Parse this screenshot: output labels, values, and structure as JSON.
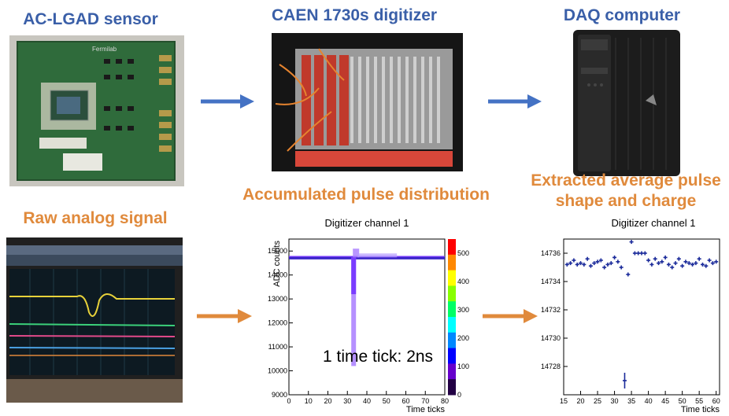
{
  "headings": {
    "sensor": "AC-LGAD sensor",
    "digitizer": "CAEN 1730s digitizer",
    "daq": "DAQ computer",
    "raw": "Raw analog signal",
    "accumulated": "Accumulated pulse distribution",
    "extracted_line1": "Extracted average pulse",
    "extracted_line2": "shape and charge"
  },
  "colors": {
    "blue": "#3a5fa8",
    "orange": "#e08a3c",
    "arrow_blue": "#4472c4",
    "arrow_orange": "#e08a3c"
  },
  "sensor_photo": {
    "logo": "Fermilab"
  },
  "chart_data": [
    {
      "type": "heatmap",
      "title": "Digitizer channel 1",
      "xlabel": "Time ticks",
      "ylabel": "ADC counts",
      "xlim": [
        0,
        80
      ],
      "ylim": [
        9000,
        15500
      ],
      "xticks": [
        0,
        10,
        20,
        30,
        40,
        50,
        60,
        70,
        80
      ],
      "yticks": [
        9000,
        10000,
        11000,
        12000,
        13000,
        14000,
        15000
      ],
      "ytick_labels": [
        "9000",
        "10000",
        "11000",
        "12000",
        "13000",
        "14000",
        "15000"
      ],
      "zlim": [
        0,
        550
      ],
      "zticks": [
        0,
        100,
        200,
        300,
        400,
        500
      ],
      "baseline": 14735,
      "pulse_start_tick": 32,
      "pulse_min": 10200,
      "annotation": "1 time tick: 2ns"
    },
    {
      "type": "scatter",
      "title": "Digitizer channel 1",
      "xlabel": "Time ticks",
      "xlim": [
        15,
        61
      ],
      "ylim": [
        14726,
        14737
      ],
      "xticks": [
        15,
        20,
        25,
        30,
        35,
        40,
        45,
        50,
        55,
        60
      ],
      "yticks": [
        14728,
        14730,
        14732,
        14734,
        14736
      ],
      "points": [
        {
          "x": 16,
          "y": 14735.2
        },
        {
          "x": 17,
          "y": 14735.3
        },
        {
          "x": 18,
          "y": 14735.5
        },
        {
          "x": 19,
          "y": 14735.2
        },
        {
          "x": 20,
          "y": 14735.3
        },
        {
          "x": 21,
          "y": 14735.2
        },
        {
          "x": 22,
          "y": 14735.6
        },
        {
          "x": 23,
          "y": 14735.1
        },
        {
          "x": 24,
          "y": 14735.3
        },
        {
          "x": 25,
          "y": 14735.4
        },
        {
          "x": 26,
          "y": 14735.5
        },
        {
          "x": 27,
          "y": 14735.0
        },
        {
          "x": 28,
          "y": 14735.2
        },
        {
          "x": 29,
          "y": 14735.3
        },
        {
          "x": 30,
          "y": 14735.7
        },
        {
          "x": 31,
          "y": 14735.4
        },
        {
          "x": 32,
          "y": 14735.0
        },
        {
          "x": 33,
          "y": 14727.0
        },
        {
          "x": 34,
          "y": 14734.5
        },
        {
          "x": 35,
          "y": 14736.8
        },
        {
          "x": 36,
          "y": 14736.0
        },
        {
          "x": 37,
          "y": 14736.0
        },
        {
          "x": 38,
          "y": 14736.0
        },
        {
          "x": 39,
          "y": 14736.0
        },
        {
          "x": 40,
          "y": 14735.5
        },
        {
          "x": 41,
          "y": 14735.2
        },
        {
          "x": 42,
          "y": 14735.6
        },
        {
          "x": 43,
          "y": 14735.3
        },
        {
          "x": 44,
          "y": 14735.4
        },
        {
          "x": 45,
          "y": 14735.7
        },
        {
          "x": 46,
          "y": 14735.2
        },
        {
          "x": 47,
          "y": 14735.0
        },
        {
          "x": 48,
          "y": 14735.3
        },
        {
          "x": 49,
          "y": 14735.6
        },
        {
          "x": 50,
          "y": 14735.1
        },
        {
          "x": 51,
          "y": 14735.4
        },
        {
          "x": 52,
          "y": 14735.3
        },
        {
          "x": 53,
          "y": 14735.2
        },
        {
          "x": 54,
          "y": 14735.3
        },
        {
          "x": 55,
          "y": 14735.6
        },
        {
          "x": 56,
          "y": 14735.2
        },
        {
          "x": 57,
          "y": 14735.1
        },
        {
          "x": 58,
          "y": 14735.5
        },
        {
          "x": 59,
          "y": 14735.3
        },
        {
          "x": 60,
          "y": 14735.4
        }
      ]
    }
  ]
}
